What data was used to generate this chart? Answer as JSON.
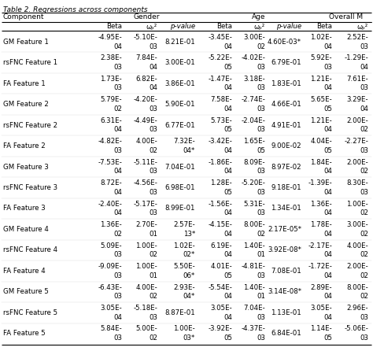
{
  "title": "Table 2. Regressions across components",
  "rows": [
    {
      "label": "GM Feature 1",
      "data": [
        "-4.95E-",
        "04",
        "-5.10E-",
        "03",
        "8.21E-01",
        "-3.45E-",
        "04",
        "3.00E-",
        "02",
        "4.60E-03*",
        "1.02E-",
        "04",
        "2.52E-",
        "03"
      ]
    },
    {
      "label": "rsFNC Feature 1",
      "data": [
        "2.38E-",
        "03",
        "7.84E-",
        "04",
        "3.00E-01",
        "-5.22E-",
        "05",
        "-4.02E-",
        "03",
        "6.79E-01",
        "5.92E-",
        "03",
        "-1.29E-",
        "04"
      ]
    },
    {
      "label": "FA Feature 1",
      "data": [
        "1.73E-",
        "03",
        "6.82E-",
        "04",
        "3.86E-01",
        "-1.47E-",
        "04",
        "3.18E-",
        "03",
        "1.83E-01",
        "1.21E-",
        "04",
        "7.61E-",
        "03"
      ]
    },
    {
      "label": "GM Feature 2",
      "data": [
        "5.79E-",
        "02",
        "-4.20E-",
        "03",
        "5.90E-01",
        "7.58E-",
        "04",
        "-2.74E-",
        "03",
        "4.66E-01",
        "5.65E-",
        "05",
        "3.29E-",
        "04"
      ]
    },
    {
      "label": "rsFNC Feature 2",
      "data": [
        "6.31E-",
        "04",
        "-4.49E-",
        "03",
        "6.77E-01",
        "5.73E-",
        "05",
        "-2.04E-",
        "03",
        "4.91E-01",
        "1.21E-",
        "04",
        "2.00E-",
        "02"
      ]
    },
    {
      "label": "FA Feature 2",
      "data": [
        "-4.82E-",
        "03",
        "4.00E-",
        "02",
        "7.32E-\n04*",
        "-3.42E-",
        "04",
        "1.65E-",
        "05",
        "9.00E-02",
        "4.04E-",
        "05",
        "-2.27E-",
        "03"
      ]
    },
    {
      "label": "GM Feature 3",
      "data": [
        "-7.53E-",
        "04",
        "-5.11E-",
        "03",
        "7.04E-01",
        "-1.86E-",
        "04",
        "8.09E-",
        "03",
        "8.97E-02",
        "1.84E-",
        "04",
        "2.00E-",
        "02"
      ]
    },
    {
      "label": "rsFNC Feature 3",
      "data": [
        "8.72E-",
        "04",
        "-4.56E-",
        "03",
        "6.98E-01",
        "1.28E-",
        "05",
        "-5.20E-",
        "03",
        "9.18E-01",
        "-1.39E-",
        "04",
        "8.30E-",
        "03"
      ]
    },
    {
      "label": "FA Feature 3",
      "data": [
        "-2.40E-",
        "04",
        "-5.17E-",
        "03",
        "8.99E-01",
        "-1.56E-",
        "04",
        "5.31E-",
        "03",
        "1.34E-01",
        "1.36E-",
        "04",
        "1.00E-",
        "02"
      ]
    },
    {
      "label": "GM Feature 4",
      "data": [
        "1.36E-",
        "02",
        "2.70E-",
        "01",
        "2.57E-\n13*",
        "-4.15E-",
        "04",
        "8.00E-",
        "02",
        "2.17E-05*",
        "1.78E-",
        "04",
        "3.00E-",
        "02"
      ]
    },
    {
      "label": "rsFNC Feature 4",
      "data": [
        "5.09E-",
        "03",
        "1.00E-",
        "02",
        "1.02E-\n02*",
        "6.19E-",
        "04",
        "1.40E-",
        "01",
        "3.92E-08*",
        "-2.17E-",
        "04",
        "4.00E-",
        "02"
      ]
    },
    {
      "label": "FA Feature 4",
      "data": [
        "-9.09E-",
        "03",
        "1.00E-",
        "01",
        "5.50E-\n06*",
        "4.01E-",
        "05",
        "-4.81E-",
        "03",
        "7.08E-01",
        "-1.72E-",
        "04",
        "2.00E-",
        "02"
      ]
    },
    {
      "label": "GM Feature 5",
      "data": [
        "-6.43E-",
        "03",
        "4.00E-",
        "02",
        "2.93E-\n04*",
        "-5.54E-",
        "04",
        "1.40E-",
        "01",
        "3.14E-08*",
        "2.89E-",
        "04",
        "8.00E-",
        "02"
      ]
    },
    {
      "label": "rsFNC Feature 5",
      "data": [
        "3.05E-",
        "04",
        "-5.18E-",
        "03",
        "8.87E-01",
        "3.05E-",
        "04",
        "7.04E-",
        "03",
        "1.13E-01",
        "3.05E-",
        "04",
        "2.96E-",
        "03"
      ]
    },
    {
      "label": "FA Feature 5",
      "data": [
        "5.84E-",
        "03",
        "5.00E-",
        "02",
        "1.00E-\n03*",
        "-3.92E-",
        "05",
        "-4.37E-",
        "03",
        "6.84E-01",
        "1.14E-",
        "05",
        "-5.06E-",
        "03"
      ]
    }
  ],
  "background_color": "#ffffff",
  "text_color": "#000000",
  "fontsize": 6.2
}
